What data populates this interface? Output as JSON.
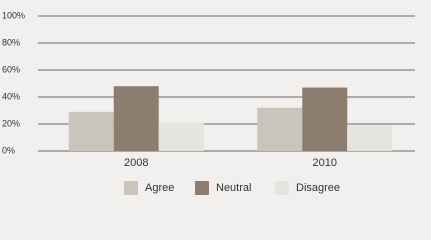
{
  "chart_data": {
    "type": "bar",
    "categories": [
      "2008",
      "2010"
    ],
    "series": [
      {
        "name": "Agree",
        "color": "#c9c4bc",
        "values": [
          29,
          32
        ]
      },
      {
        "name": "Neutral",
        "color": "#8c7d6f",
        "values": [
          48,
          47
        ]
      },
      {
        "name": "Disagree",
        "color": "#e6e4e1",
        "values": [
          21,
          19
        ]
      }
    ],
    "ylim": [
      0,
      100
    ],
    "yticks": [
      {
        "value": 0,
        "label": "0%"
      },
      {
        "value": 20,
        "label": "20%"
      },
      {
        "value": 40,
        "label": "40%"
      },
      {
        "value": 60,
        "label": "60%"
      },
      {
        "value": 80,
        "label": "80%"
      },
      {
        "value": 100,
        "label": "100%"
      }
    ],
    "grid": true,
    "legend": "bottom"
  }
}
